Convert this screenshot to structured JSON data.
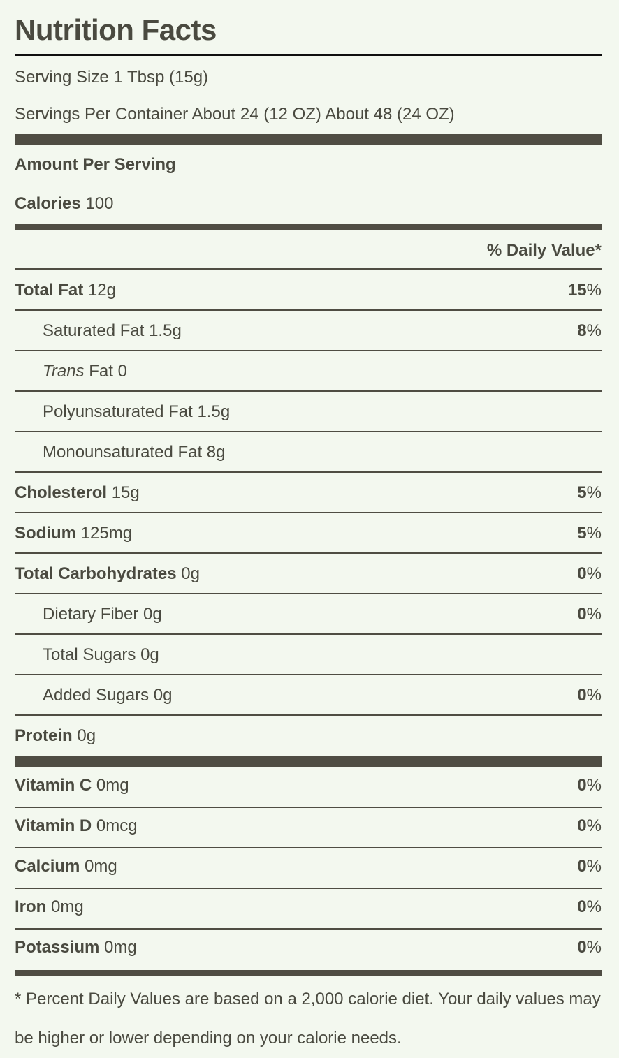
{
  "title": "Nutrition Facts",
  "serving_size": "Serving Size 1 Tbsp (15g)",
  "servings_per_container": "Servings Per Container About 24 (12 OZ) About 48 (24 OZ)",
  "amount_per_serving": "Amount Per Serving",
  "calories": {
    "label": "Calories",
    "value": "100"
  },
  "daily_value_header": "% Daily Value*",
  "nutrients": {
    "total_fat": {
      "label": "Total Fat",
      "amount": "12g",
      "pct": "15",
      "unit": "%"
    },
    "saturated_fat": {
      "label": "Saturated Fat 1.5g",
      "pct": "8",
      "unit": "%"
    },
    "trans_fat": {
      "label_italic": "Trans",
      "label_rest": "Fat 0"
    },
    "polyunsaturated_fat": {
      "label": "Polyunsaturated Fat 1.5g"
    },
    "monounsaturated_fat": {
      "label": "Monounsaturated Fat 8g"
    },
    "cholesterol": {
      "label": "Cholesterol",
      "amount": "15g",
      "pct": "5",
      "unit": "%"
    },
    "sodium": {
      "label": "Sodium",
      "amount": "125mg",
      "pct": "5",
      "unit": "%"
    },
    "total_carbohydrates": {
      "label": "Total Carbohydrates",
      "amount": "0g",
      "pct": "0",
      "unit": "%"
    },
    "dietary_fiber": {
      "label": "Dietary Fiber 0g",
      "pct": "0",
      "unit": "%"
    },
    "total_sugars": {
      "label": "Total Sugars 0g"
    },
    "added_sugars": {
      "label": "Added Sugars 0g",
      "pct": "0",
      "unit": "%"
    },
    "protein": {
      "label": "Protein",
      "amount": "0g"
    }
  },
  "vitamins": {
    "vitamin_c": {
      "label": "Vitamin C",
      "amount": "0mg",
      "pct": "0",
      "unit": "%"
    },
    "vitamin_d": {
      "label": "Vitamin D",
      "amount": "0mcg",
      "pct": "0",
      "unit": "%"
    },
    "calcium": {
      "label": "Calcium",
      "amount": "0mg",
      "pct": "0",
      "unit": "%"
    },
    "iron": {
      "label": "Iron",
      "amount": "0mg",
      "pct": "0",
      "unit": "%"
    },
    "potassium": {
      "label": "Potassium",
      "amount": "0mg",
      "pct": "0",
      "unit": "%"
    }
  },
  "footnote": "* Percent Daily Values are based on a 2,000 calorie diet. Your daily values may be higher or lower depending on your calorie needs."
}
